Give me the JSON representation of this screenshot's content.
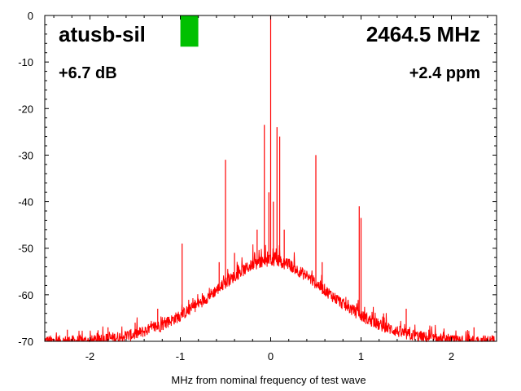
{
  "chart_data": {
    "type": "line",
    "title": "atusb-sil",
    "frequency": "2464.5 MHz",
    "snr": "+6.7 dB",
    "offset_ppm": "+2.4 ppm",
    "xlabel": "MHz from nominal frequency of test wave",
    "ylabel": "",
    "xlim": [
      -2.5,
      2.5
    ],
    "ylim": [
      -70,
      0
    ],
    "xticks": [
      "-2",
      "-1",
      "0",
      "1",
      "2"
    ],
    "yticks": [
      "0",
      "-10",
      "-20",
      "-30",
      "-40",
      "-50",
      "-60",
      "-70"
    ],
    "series": [
      {
        "name": "spectrum",
        "color": "#ff0000",
        "noise_floor_envelope": {
          "x": [
            -2.5,
            -2.2,
            -2.0,
            -1.8,
            -1.5,
            -1.2,
            -1.0,
            -0.8,
            -0.6,
            -0.4,
            -0.2,
            0.0,
            0.2,
            0.4,
            0.6,
            0.8,
            1.0,
            1.2,
            1.5,
            1.8,
            2.0,
            2.2,
            2.5
          ],
          "y": [
            -70,
            -70,
            -70,
            -69.5,
            -68.5,
            -66.5,
            -64.5,
            -62,
            -59,
            -56,
            -53.5,
            -52.5,
            -53.5,
            -56,
            -59,
            -62,
            -64.5,
            -66.5,
            -68.5,
            -69.5,
            -70,
            -70,
            -70
          ]
        },
        "spurs": [
          {
            "x": -2.25,
            "y": -67.5
          },
          {
            "x": -1.95,
            "y": -69
          },
          {
            "x": -1.8,
            "y": -67
          },
          {
            "x": -1.5,
            "y": -66
          },
          {
            "x": -1.25,
            "y": -63
          },
          {
            "x": -1.15,
            "y": -65
          },
          {
            "x": -0.98,
            "y": -49
          },
          {
            "x": -0.57,
            "y": -53
          },
          {
            "x": -0.5,
            "y": -31
          },
          {
            "x": -0.4,
            "y": -51
          },
          {
            "x": -0.15,
            "y": -46
          },
          {
            "x": -0.07,
            "y": -23.5
          },
          {
            "x": -0.02,
            "y": -38
          },
          {
            "x": 0.0,
            "y": 0
          },
          {
            "x": 0.03,
            "y": -40
          },
          {
            "x": 0.07,
            "y": -24
          },
          {
            "x": 0.1,
            "y": -26
          },
          {
            "x": 0.15,
            "y": -46
          },
          {
            "x": 0.5,
            "y": -30
          },
          {
            "x": 0.57,
            "y": -53
          },
          {
            "x": 0.98,
            "y": -41
          },
          {
            "x": 1.0,
            "y": -43.5
          },
          {
            "x": 1.15,
            "y": -65
          },
          {
            "x": 1.25,
            "y": -64
          },
          {
            "x": 1.5,
            "y": -63
          },
          {
            "x": 1.75,
            "y": -67.5
          },
          {
            "x": 1.95,
            "y": -69
          },
          {
            "x": 2.25,
            "y": -67
          }
        ]
      }
    ],
    "indicator": {
      "color": "#00c000",
      "top_db": 0,
      "bottom_db": -6.7,
      "x_mhz": -0.9
    },
    "grid": false
  }
}
